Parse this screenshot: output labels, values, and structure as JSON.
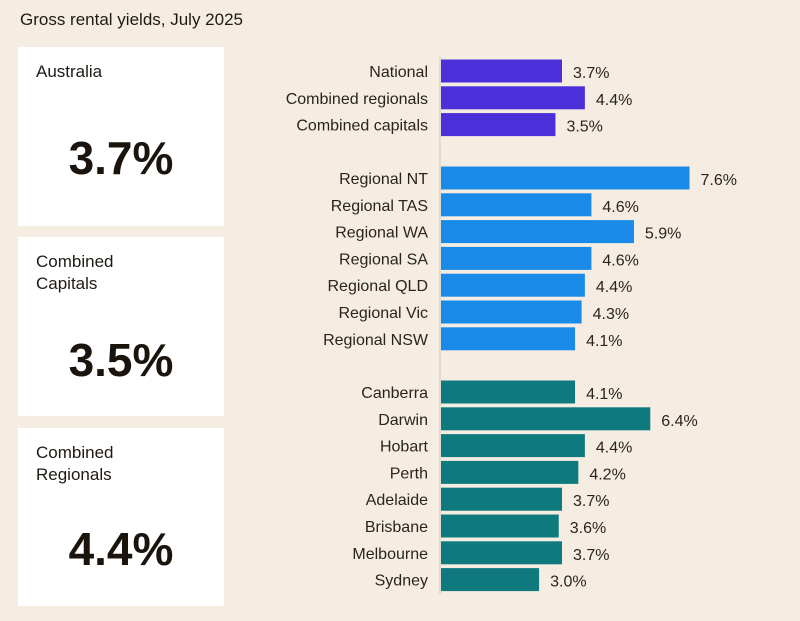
{
  "title": "Gross rental yields, July 2025",
  "cards": [
    {
      "label": "Australia",
      "value": "3.7%"
    },
    {
      "label": "Combined\nCapitals",
      "value": "3.5%"
    },
    {
      "label": "Combined\nRegionals",
      "value": "4.4%"
    }
  ],
  "chart_data": {
    "type": "bar",
    "orientation": "horizontal",
    "unit": "%",
    "groups": [
      {
        "color": "#4b2fd9",
        "categories": [
          "National",
          "Combined regionals",
          "Combined capitals"
        ],
        "values": [
          3.7,
          4.4,
          3.5
        ],
        "labels": [
          "3.7%",
          "4.4%",
          "3.5%"
        ]
      },
      {
        "color": "#1a8ae8",
        "categories": [
          "Regional NT",
          "Regional TAS",
          "Regional WA",
          "Regional SA",
          "Regional QLD",
          "Regional Vic",
          "Regional NSW"
        ],
        "values": [
          7.6,
          4.6,
          5.9,
          4.6,
          4.4,
          4.3,
          4.1
        ],
        "labels": [
          "7.6%",
          "4.6%",
          "5.9%",
          "4.6%",
          "4.4%",
          "4.3%",
          "4.1%"
        ]
      },
      {
        "color": "#0e7a7e",
        "categories": [
          "Canberra",
          "Darwin",
          "Hobart",
          "Perth",
          "Adelaide",
          "Brisbane",
          "Melbourne",
          "Sydney"
        ],
        "values": [
          4.1,
          6.4,
          4.4,
          4.2,
          3.7,
          3.6,
          3.7,
          3.0
        ],
        "labels": [
          "4.1%",
          "6.4%",
          "4.4%",
          "4.2%",
          "3.7%",
          "3.6%",
          "3.7%",
          "3.0%"
        ]
      }
    ]
  }
}
